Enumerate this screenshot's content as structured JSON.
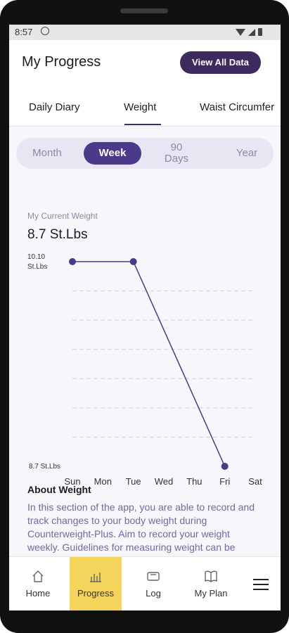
{
  "status": {
    "time": "8:57"
  },
  "header": {
    "title": "My Progress",
    "view_all_label": "View All Data"
  },
  "tabs": [
    {
      "label": "Daily Diary",
      "active": false
    },
    {
      "label": "Weight",
      "active": true
    },
    {
      "label": "Waist Circumfer",
      "active": false
    }
  ],
  "range_selector": {
    "month": "Month",
    "week": "Week",
    "ninety_days": "90\nDays",
    "year": "Year",
    "selected": "Week"
  },
  "current_weight": {
    "label": "My Current Weight",
    "value": "8.7 St.Lbs"
  },
  "chart_data": {
    "type": "line",
    "x": [
      "Sun",
      "Mon",
      "Tue",
      "Wed",
      "Thu",
      "Fri",
      "Sat"
    ],
    "series": [
      {
        "values": [
          10.1,
          null,
          10.1,
          null,
          null,
          8.7,
          null
        ]
      }
    ],
    "y_tick_labels": {
      "top": "10.10\nSt.Lbs",
      "bottom": "8.7 St.Lbs"
    },
    "ylim": [
      8.7,
      10.1
    ],
    "grid": true,
    "line_color": "#4b3a8a"
  },
  "about": {
    "title": "About Weight",
    "text": "In this section of the app, you are able to record and track changes to your body weight during Counterweight-Plus. Aim to record your weight weekly. Guidelines for measuring weight can be"
  },
  "nav": {
    "home": "Home",
    "progress": "Progress",
    "log": "Log",
    "plan": "My Plan",
    "active": "Progress"
  },
  "colors": {
    "accent": "#4b3a8a",
    "dark_button": "#3d2a5e",
    "active_nav": "#f5d45c",
    "muted_text": "#8d89a3"
  }
}
